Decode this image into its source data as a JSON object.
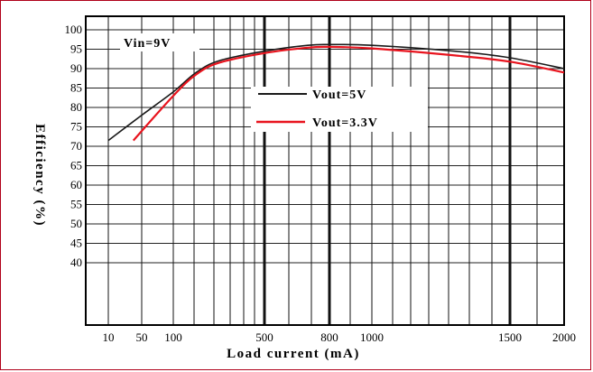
{
  "chart_data": {
    "type": "line",
    "title": "",
    "xlabel": "Load current (mA)",
    "ylabel": "Efficiency (%)",
    "annotation": "Vin=9V",
    "x_ticks": [
      {
        "value": 10,
        "label": "10"
      },
      {
        "value": 50,
        "label": "50"
      },
      {
        "value": 100,
        "label": "100"
      },
      {
        "value": 500,
        "label": "500"
      },
      {
        "value": 800,
        "label": "800"
      },
      {
        "value": 1000,
        "label": "1000"
      },
      {
        "value": 1500,
        "label": "1500"
      },
      {
        "value": 2000,
        "label": "2000"
      }
    ],
    "y_ticks": [
      40,
      45,
      50,
      55,
      60,
      65,
      70,
      75,
      80,
      85,
      90,
      95,
      100
    ],
    "xlim": [
      0,
      2000
    ],
    "ylim": [
      0,
      100
    ],
    "grid": true,
    "legend_position": "center-right",
    "series": [
      {
        "name": "Vout=5V",
        "color": "#1a1a1a",
        "x": [
          10,
          50,
          100,
          200,
          300,
          500,
          700,
          800,
          1000,
          1300,
          1500,
          2000
        ],
        "y": [
          71.5,
          78,
          84,
          89,
          92,
          94.5,
          96,
          96.2,
          96,
          94.5,
          92.8,
          90
        ]
      },
      {
        "name": "Vout=3.3V",
        "color": "#e8141e",
        "x": [
          40,
          100,
          200,
          300,
          500,
          700,
          800,
          1000,
          1300,
          1500,
          2000
        ],
        "y": [
          71.5,
          83,
          88.5,
          91.5,
          94,
          95.4,
          95.6,
          95.2,
          93.4,
          91.8,
          89
        ]
      }
    ]
  }
}
